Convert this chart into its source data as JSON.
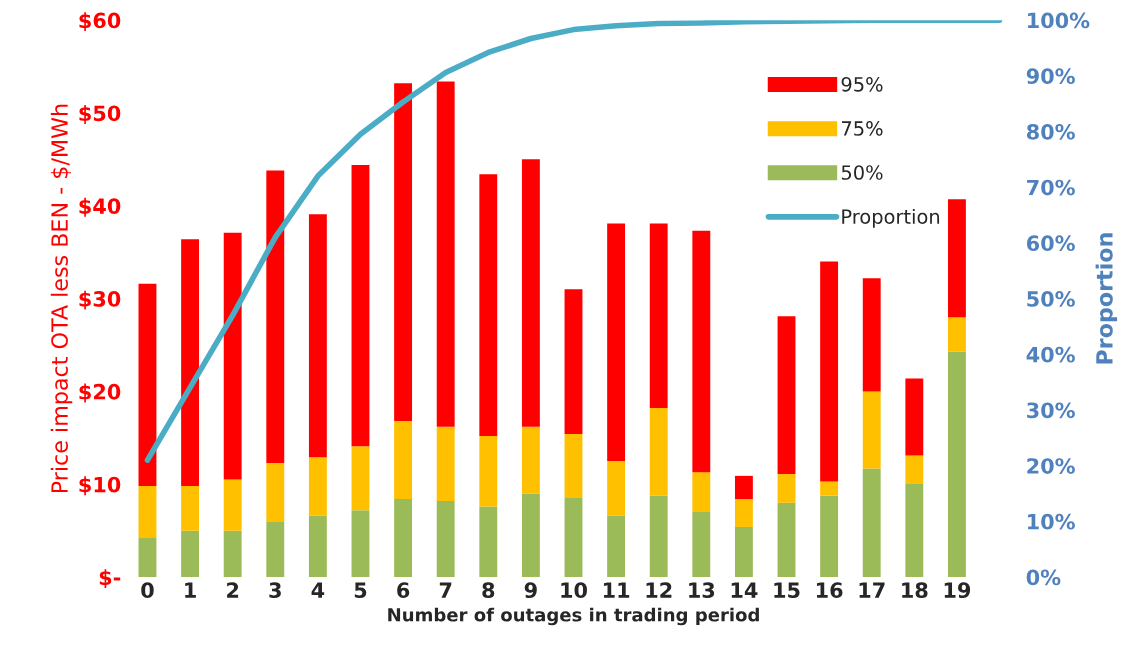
{
  "chart_data": {
    "type": "bar",
    "stacked": true,
    "xlabel": "Number of outages in trading period",
    "ylabel": "Price impact OTA less BEN - $/MWh",
    "y2label": "Proportion",
    "categories": [
      "0",
      "1",
      "2",
      "3",
      "4",
      "5",
      "6",
      "7",
      "8",
      "9",
      "10",
      "11",
      "12",
      "13",
      "14",
      "15",
      "16",
      "17",
      "18",
      "19",
      null
    ],
    "series": [
      {
        "name": "50%",
        "color": "#9bbb59",
        "values": [
          4.3,
          5.0,
          5.0,
          6.0,
          6.6,
          7.2,
          8.4,
          8.2,
          7.6,
          9.0,
          8.6,
          6.6,
          8.8,
          7.0,
          5.4,
          8.0,
          8.8,
          11.7,
          10.1,
          24.3,
          null
        ]
      },
      {
        "name": "75%",
        "color": "#ffc000",
        "values": [
          5.5,
          4.8,
          5.5,
          6.3,
          6.3,
          6.9,
          8.4,
          8.0,
          7.6,
          7.2,
          6.8,
          5.9,
          9.4,
          4.3,
          3.0,
          3.1,
          1.5,
          8.3,
          3.0,
          3.7,
          null
        ]
      },
      {
        "name": "95%",
        "color": "#ff0000",
        "values": [
          21.8,
          26.6,
          26.6,
          31.5,
          26.2,
          30.3,
          36.4,
          37.2,
          28.2,
          28.8,
          15.6,
          25.6,
          19.9,
          26.0,
          2.5,
          17.0,
          23.7,
          12.2,
          8.3,
          12.7,
          null
        ]
      },
      {
        "name": "Proportion",
        "type": "line",
        "axis": "y2",
        "color": "#4bacc6",
        "values": [
          21,
          34,
          47,
          61,
          72,
          79.5,
          85.3,
          90.6,
          94.2,
          96.7,
          98.3,
          99.0,
          99.4,
          99.5,
          99.7,
          99.8,
          99.9,
          100,
          100,
          100,
          100
        ]
      }
    ],
    "ylim": [
      0,
      60
    ],
    "yticks": [
      {
        "value": 0,
        "label": "$-"
      },
      {
        "value": 10,
        "label": "$10"
      },
      {
        "value": 20,
        "label": "$20"
      },
      {
        "value": 30,
        "label": "$30"
      },
      {
        "value": 40,
        "label": "$40"
      },
      {
        "value": 50,
        "label": "$50"
      },
      {
        "value": 60,
        "label": "$60"
      }
    ],
    "y2lim": [
      0,
      100
    ],
    "y2ticks": [
      {
        "value": 0,
        "label": "0%"
      },
      {
        "value": 10,
        "label": "10%"
      },
      {
        "value": 20,
        "label": "20%"
      },
      {
        "value": 30,
        "label": "30%"
      },
      {
        "value": 40,
        "label": "40%"
      },
      {
        "value": 50,
        "label": "50%"
      },
      {
        "value": 60,
        "label": "60%"
      },
      {
        "value": 70,
        "label": "70%"
      },
      {
        "value": 80,
        "label": "80%"
      },
      {
        "value": 90,
        "label": "90%"
      },
      {
        "value": 100,
        "label": "100%"
      }
    ],
    "grid": false,
    "legend": "top right"
  }
}
